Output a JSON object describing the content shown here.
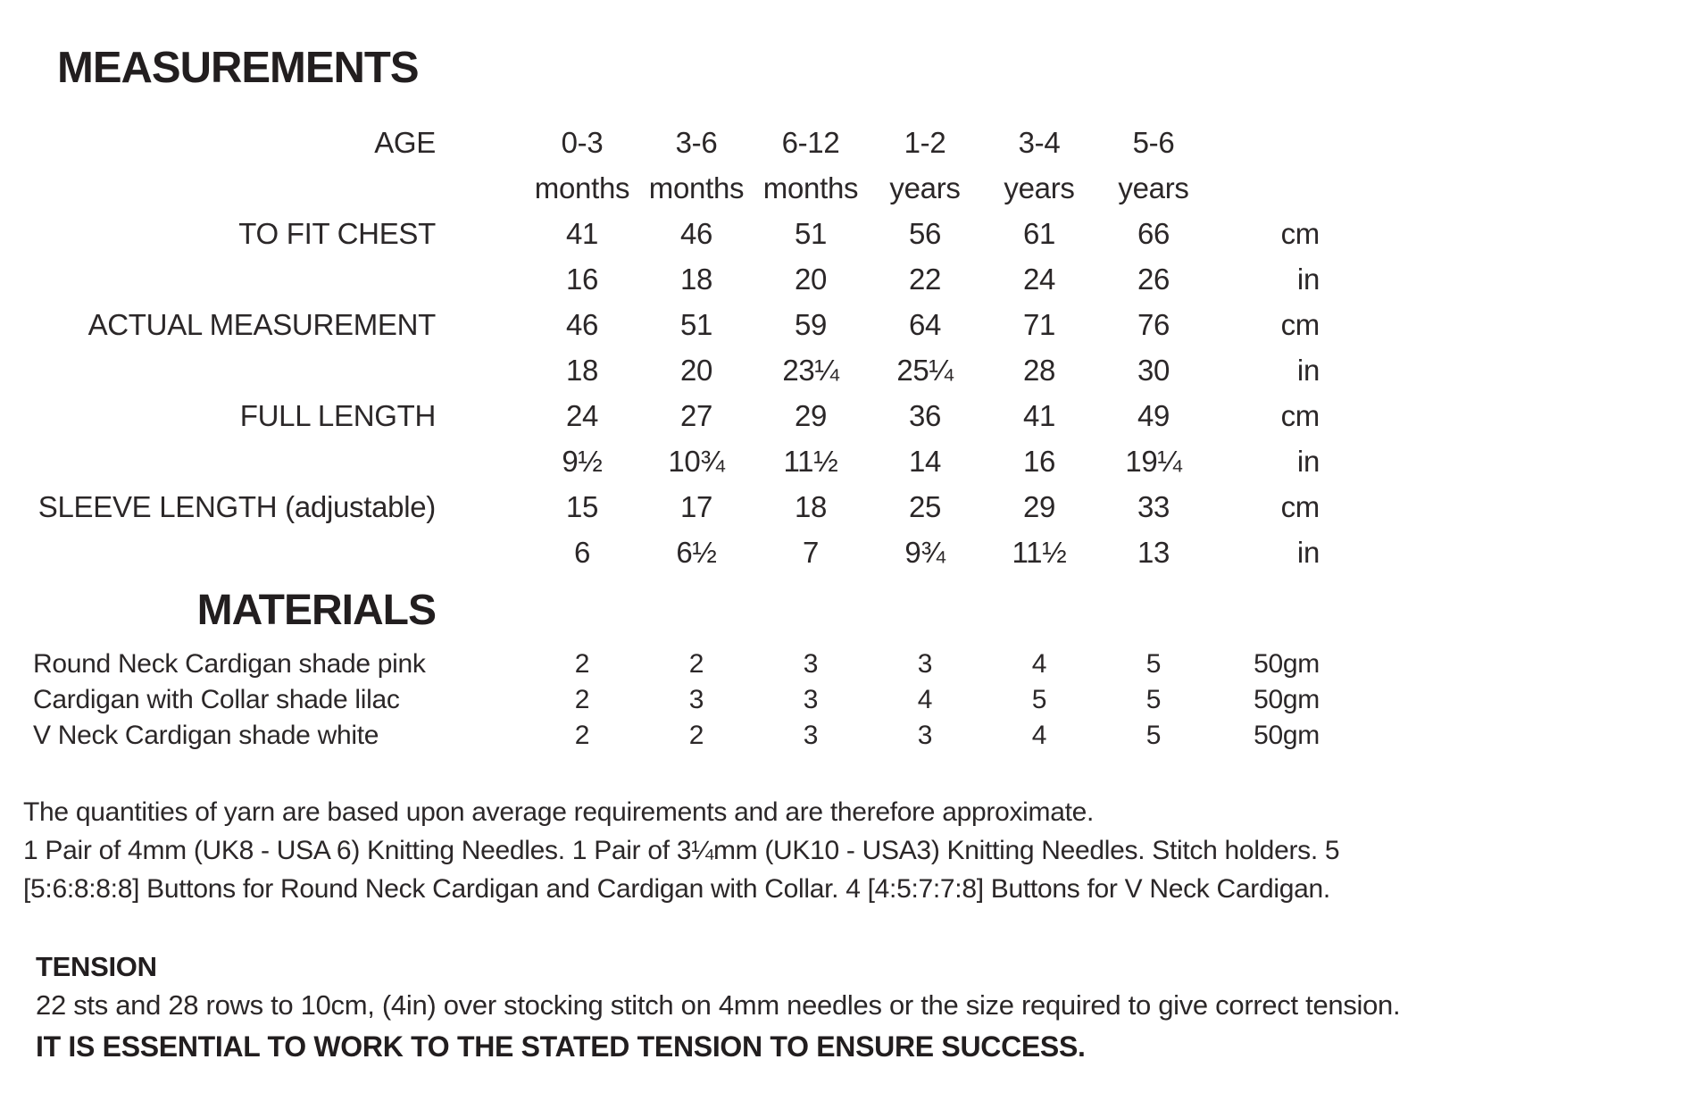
{
  "colors": {
    "background": "#ffffff",
    "text": "#2b2728",
    "heading": "#221e1f"
  },
  "measurements": {
    "title": "MEASUREMENTS",
    "age_label": "AGE",
    "age_columns": [
      {
        "range": "0-3",
        "unit": "months"
      },
      {
        "range": "3-6",
        "unit": "months"
      },
      {
        "range": "6-12",
        "unit": "months"
      },
      {
        "range": "1-2",
        "unit": "years"
      },
      {
        "range": "3-4",
        "unit": "years"
      },
      {
        "range": "5-6",
        "unit": "years"
      }
    ],
    "unit_cm": "cm",
    "unit_in": "in",
    "rows": [
      {
        "label": "TO FIT CHEST",
        "cm": [
          "41",
          "46",
          "51",
          "56",
          "61",
          "66"
        ],
        "in": [
          "16",
          "18",
          "20",
          "22",
          "24",
          "26"
        ]
      },
      {
        "label": "ACTUAL MEASUREMENT",
        "cm": [
          "46",
          "51",
          "59",
          "64",
          "71",
          "76"
        ],
        "in": [
          "18",
          "20",
          "23¼",
          "25¼",
          "28",
          "30"
        ]
      },
      {
        "label": "FULL LENGTH",
        "cm": [
          "24",
          "27",
          "29",
          "36",
          "41",
          "49"
        ],
        "in": [
          "9½",
          "10¾",
          "11½",
          "14",
          "16",
          "19¼"
        ]
      },
      {
        "label": "SLEEVE LENGTH (adjustable)",
        "cm": [
          "15",
          "17",
          "18",
          "25",
          "29",
          "33"
        ],
        "in": [
          "6",
          "6½",
          "7",
          "9¾",
          "11½",
          "13"
        ]
      }
    ]
  },
  "materials": {
    "title": "MATERIALS",
    "rows": [
      {
        "label": "Round Neck Cardigan shade pink",
        "values": [
          "2",
          "2",
          "3",
          "3",
          "4",
          "5"
        ],
        "unit": "50gm"
      },
      {
        "label": "Cardigan with Collar shade lilac",
        "values": [
          "2",
          "3",
          "3",
          "4",
          "5",
          "5"
        ],
        "unit": "50gm"
      },
      {
        "label": "V Neck Cardigan shade white",
        "values": [
          "2",
          "2",
          "3",
          "3",
          "4",
          "5"
        ],
        "unit": "50gm"
      }
    ],
    "notes_lines": [
      "The quantities of yarn are based upon average requirements and are therefore approximate.",
      "1 Pair of 4mm (UK8 - USA 6) Knitting Needles. 1 Pair of 3¼mm (UK10 - USA3) Knitting Needles. Stitch holders. 5",
      "[5:6:8:8:8] Buttons for Round Neck Cardigan and Cardigan with Collar. 4 [4:5:7:7:8] Buttons for V Neck Cardigan."
    ]
  },
  "tension": {
    "heading": "TENSION",
    "body": "22 sts and 28 rows to 10cm, (4in) over stocking stitch on 4mm needles or the size required to give correct tension.",
    "emphasis": "IT IS ESSENTIAL TO WORK TO THE STATED TENSION TO ENSURE SUCCESS."
  }
}
